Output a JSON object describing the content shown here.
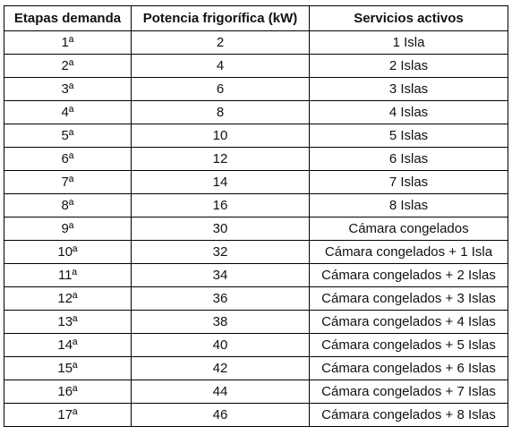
{
  "table": {
    "headers": [
      "Etapas demanda",
      "Potencia frigorífica (kW)",
      "Servicios activos"
    ],
    "rows": [
      [
        "1ª",
        "2",
        "1 Isla"
      ],
      [
        "2ª",
        "4",
        "2 Islas"
      ],
      [
        "3ª",
        "6",
        "3 Islas"
      ],
      [
        "4ª",
        "8",
        "4 Islas"
      ],
      [
        "5ª",
        "10",
        "5 Islas"
      ],
      [
        "6ª",
        "12",
        "6 Islas"
      ],
      [
        "7ª",
        "14",
        "7 Islas"
      ],
      [
        "8ª",
        "16",
        "8 Islas"
      ],
      [
        "9ª",
        "30",
        "Cámara congelados"
      ],
      [
        "10ª",
        "32",
        "Cámara congelados  + 1 Isla"
      ],
      [
        "11ª",
        "34",
        "Cámara congelados + 2 Islas"
      ],
      [
        "12ª",
        "36",
        "Cámara congelados + 3 Islas"
      ],
      [
        "13ª",
        "38",
        "Cámara congelados + 4 Islas"
      ],
      [
        "14ª",
        "40",
        "Cámara congelados + 5 Islas"
      ],
      [
        "15ª",
        "42",
        "Cámara congelados + 6 Islas"
      ],
      [
        "16ª",
        "44",
        "Cámara congelados + 7 Islas"
      ],
      [
        "17ª",
        "46",
        "Cámara congelados + 8 Islas"
      ]
    ]
  }
}
